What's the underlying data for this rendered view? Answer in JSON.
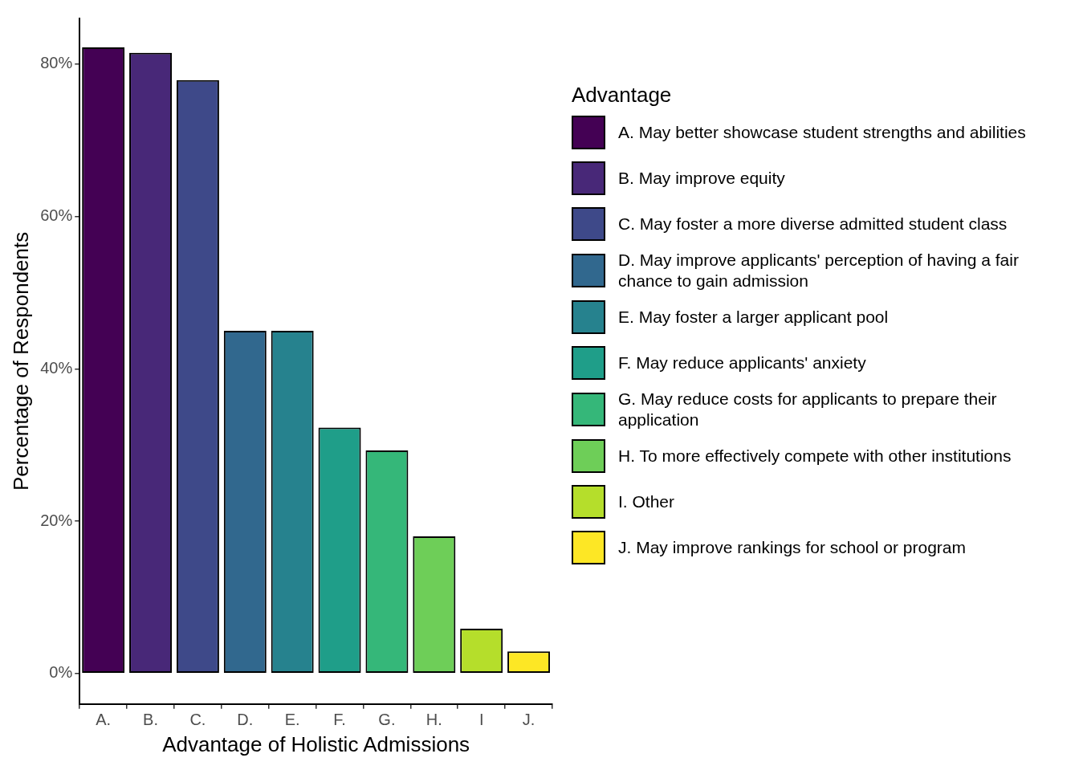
{
  "chart_data": {
    "type": "bar",
    "xlabel": "Advantage of Holistic Admissions",
    "ylabel": "Percentage of Respondents",
    "legend_title": "Advantage",
    "legend": "right",
    "categories": [
      "A.",
      "B.",
      "C.",
      "D.",
      "E.",
      "F.",
      "G.",
      "H.",
      "I",
      "J."
    ],
    "ylim": [
      -4,
      86
    ],
    "yticks": [
      {
        "value": 0,
        "label": "0%"
      },
      {
        "value": 20,
        "label": "20%"
      },
      {
        "value": 40,
        "label": "40%"
      },
      {
        "value": 60,
        "label": "60%"
      },
      {
        "value": 80,
        "label": "80%"
      }
    ],
    "series": [
      {
        "name": "A. May better showcase student strengths and abilities",
        "color": "#440154",
        "values": [
          82.2,
          null,
          null,
          null,
          null,
          null,
          null,
          null,
          null,
          null
        ]
      },
      {
        "name": "B. May improve equity",
        "color": "#482878",
        "values": [
          null,
          81.5,
          null,
          null,
          null,
          null,
          null,
          null,
          null,
          null
        ]
      },
      {
        "name": "C. May foster a more diverse admitted student class",
        "color": "#3e4989",
        "values": [
          null,
          null,
          77.9,
          null,
          null,
          null,
          null,
          null,
          null,
          null
        ]
      },
      {
        "name": "D. May improve applicants' perception of having a fair chance to gain admission",
        "color": "#31688e",
        "values": [
          null,
          null,
          null,
          45,
          null,
          null,
          null,
          null,
          null,
          null
        ]
      },
      {
        "name": "E. May foster a larger applicant pool",
        "color": "#26828e",
        "values": [
          null,
          null,
          null,
          null,
          45,
          null,
          null,
          null,
          null,
          null
        ]
      },
      {
        "name": "F. May reduce applicants' anxiety",
        "color": "#1f9e89",
        "values": [
          null,
          null,
          null,
          null,
          null,
          32.3,
          null,
          null,
          null,
          null
        ]
      },
      {
        "name": "G. May reduce costs for applicants to prepare their application",
        "color": "#35b779",
        "values": [
          null,
          null,
          null,
          null,
          null,
          null,
          29.3,
          null,
          null,
          null
        ]
      },
      {
        "name": "H. To more effectively compete with other institutions",
        "color": "#6ece58",
        "values": [
          null,
          null,
          null,
          null,
          null,
          null,
          null,
          18,
          null,
          null
        ]
      },
      {
        "name": "I. Other",
        "color": "#b5de2b",
        "values": [
          null,
          null,
          null,
          null,
          null,
          null,
          null,
          null,
          5.9,
          null
        ]
      },
      {
        "name": "J. May improve rankings for school or program",
        "color": "#fde725",
        "values": [
          null,
          null,
          null,
          null,
          null,
          null,
          null,
          null,
          null,
          2.9
        ]
      }
    ]
  }
}
